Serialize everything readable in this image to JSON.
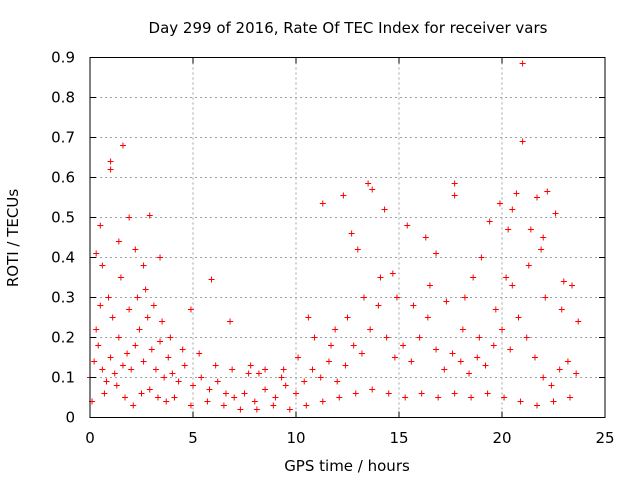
{
  "chart_data": {
    "type": "scatter",
    "title": "Day 299 of 2016, Rate Of TEC Index for receiver vars",
    "xlabel": "GPS time / hours",
    "ylabel": "ROTI / TECUs",
    "xlim": [
      0,
      25
    ],
    "ylim": [
      0,
      0.9
    ],
    "x_ticks": [
      0,
      5,
      10,
      15,
      20,
      25
    ],
    "x_tick_labels": [
      "0",
      "5",
      "10",
      "15",
      "20",
      "25"
    ],
    "y_ticks": [
      0,
      0.1,
      0.2,
      0.3,
      0.4,
      0.5,
      0.6,
      0.7,
      0.8,
      0.9
    ],
    "y_tick_labels": [
      "0",
      "0.1",
      "0.2",
      "0.3",
      "0.4",
      "0.5",
      "0.6",
      "0.7",
      "0.8",
      "0.9"
    ],
    "grid": true,
    "marker": "+",
    "series": [
      {
        "name": "ROTI",
        "color": "#ff0000",
        "x": [
          0.0,
          0.2,
          0.4,
          0.6,
          0.8,
          1.0,
          1.2,
          1.4,
          1.6,
          1.8,
          2.0,
          2.2,
          2.4,
          2.6,
          2.8,
          3.0,
          3.2,
          3.4,
          3.6,
          3.8,
          4.0,
          4.3,
          4.6,
          5.0,
          5.4,
          5.8,
          6.2,
          6.6,
          7.0,
          7.5,
          8.0,
          8.5,
          9.0,
          9.5,
          10.0,
          10.4,
          10.8,
          11.2,
          11.6,
          12.0,
          12.4,
          12.8,
          13.2,
          13.6,
          14.0,
          14.4,
          14.8,
          15.2,
          15.6,
          16.0,
          16.4,
          16.8,
          17.2,
          17.6,
          18.0,
          18.4,
          18.8,
          19.2,
          19.6,
          20.0,
          20.4,
          20.8,
          21.2,
          21.6,
          22.0,
          22.4,
          22.8,
          23.2,
          23.6,
          0.1,
          0.3,
          0.5,
          0.7,
          0.9,
          1.1,
          1.3,
          1.5,
          1.7,
          1.9,
          2.1,
          2.3,
          2.5,
          2.7,
          2.9,
          3.1,
          3.3,
          3.5,
          3.7,
          3.9,
          4.1,
          4.5,
          4.9,
          5.3,
          5.7,
          6.1,
          6.5,
          6.9,
          7.3,
          7.7,
          8.1,
          8.5,
          8.9,
          9.3,
          9.7,
          10.1,
          10.5,
          10.9,
          11.3,
          11.7,
          12.1,
          12.5,
          12.9,
          13.3,
          13.7,
          14.1,
          14.5,
          14.9,
          15.3,
          15.7,
          16.1,
          16.5,
          16.9,
          17.3,
          17.7,
          18.1,
          18.5,
          18.9,
          19.3,
          19.7,
          20.1,
          20.5,
          20.9,
          21.3,
          21.7,
          22.1,
          22.5,
          22.9,
          23.3,
          23.7,
          1.0,
          1.0,
          1.6,
          1.9,
          2.9,
          5.9,
          11.3,
          12.3,
          13.5,
          13.7,
          17.7,
          17.7,
          19.9,
          20.3,
          20.7,
          21.0,
          21.0,
          21.7,
          22.2,
          22.6,
          0.3,
          0.5,
          1.4,
          2.6,
          4.9,
          7.8,
          9.4,
          11.9,
          12.7,
          14.3,
          15.4,
          16.3,
          18.6,
          19.4,
          20.5,
          21.4,
          22.0,
          23.0,
          0.6,
          2.2,
          3.4,
          6.8,
          8.2,
          10.6,
          13.0,
          14.7,
          16.8,
          18.2,
          19.0,
          20.2,
          21.9,
          23.4
        ],
        "y": [
          0.1,
          0.14,
          0.18,
          0.12,
          0.09,
          0.15,
          0.11,
          0.2,
          0.13,
          0.16,
          0.12,
          0.18,
          0.22,
          0.14,
          0.25,
          0.17,
          0.12,
          0.19,
          0.1,
          0.15,
          0.11,
          0.09,
          0.13,
          0.08,
          0.1,
          0.07,
          0.09,
          0.06,
          0.05,
          0.06,
          0.04,
          0.07,
          0.05,
          0.08,
          0.06,
          0.09,
          0.12,
          0.1,
          0.14,
          0.09,
          0.13,
          0.18,
          0.16,
          0.22,
          0.28,
          0.2,
          0.15,
          0.18,
          0.14,
          0.2,
          0.25,
          0.17,
          0.12,
          0.16,
          0.14,
          0.11,
          0.15,
          0.13,
          0.18,
          0.22,
          0.17,
          0.25,
          0.2,
          0.15,
          0.1,
          0.08,
          0.12,
          0.14,
          0.11,
          0.04,
          0.22,
          0.28,
          0.06,
          0.3,
          0.25,
          0.08,
          0.35,
          0.05,
          0.27,
          0.03,
          0.3,
          0.06,
          0.32,
          0.07,
          0.28,
          0.05,
          0.24,
          0.04,
          0.2,
          0.05,
          0.17,
          0.03,
          0.16,
          0.04,
          0.13,
          0.03,
          0.12,
          0.02,
          0.11,
          0.02,
          0.12,
          0.03,
          0.1,
          0.02,
          0.15,
          0.03,
          0.2,
          0.04,
          0.18,
          0.05,
          0.25,
          0.06,
          0.3,
          0.07,
          0.35,
          0.06,
          0.3,
          0.05,
          0.28,
          0.06,
          0.33,
          0.05,
          0.29,
          0.06,
          0.22,
          0.05,
          0.2,
          0.06,
          0.27,
          0.05,
          0.33,
          0.04,
          0.38,
          0.03,
          0.3,
          0.04,
          0.27,
          0.05,
          0.24,
          0.62,
          0.64,
          0.68,
          0.5,
          0.505,
          0.345,
          0.535,
          0.555,
          0.585,
          0.57,
          0.585,
          0.555,
          0.535,
          0.47,
          0.56,
          0.885,
          0.69,
          0.55,
          0.565,
          0.51,
          0.41,
          0.48,
          0.44,
          0.38,
          0.27,
          0.13,
          0.12,
          0.22,
          0.46,
          0.52,
          0.48,
          0.45,
          0.35,
          0.49,
          0.52,
          0.47,
          0.45,
          0.34,
          0.38,
          0.42,
          0.4,
          0.24,
          0.11,
          0.25,
          0.42,
          0.36,
          0.41,
          0.3,
          0.4,
          0.35,
          0.42,
          0.33
        ]
      }
    ]
  }
}
